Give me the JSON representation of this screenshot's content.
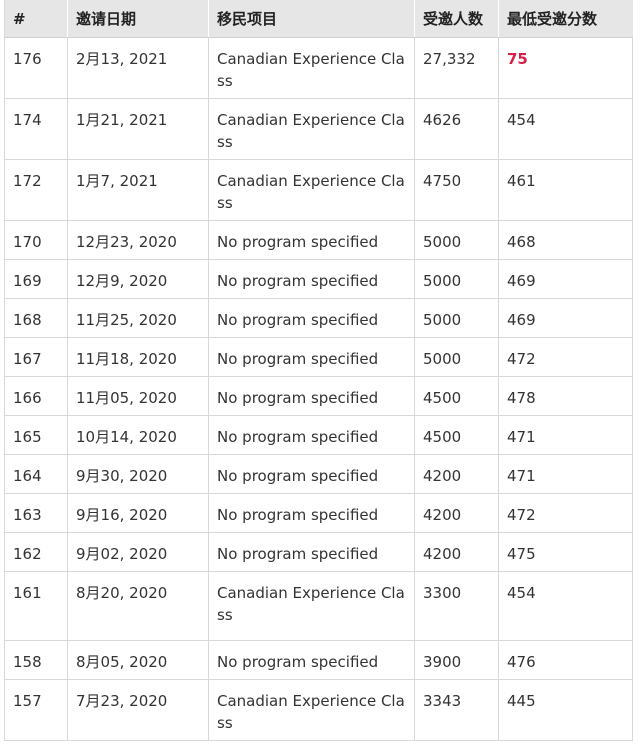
{
  "columns": [
    "#",
    "邀请日期",
    "移民项目",
    "受邀人数",
    "最低受邀分数"
  ],
  "rows": [
    {
      "num": "176",
      "date": "2月13, 2021",
      "program": "Canadian Experience Class",
      "invited": "27,332",
      "score": "75",
      "highlight": true
    },
    {
      "num": "174",
      "date": "1月21, 2021",
      "program": "Canadian Experience Class",
      "invited": "4626",
      "score": "454"
    },
    {
      "num": "172",
      "date": "1月7, 2021",
      "program": "Canadian Experience Class",
      "invited": "4750",
      "score": "461"
    },
    {
      "num": "170",
      "date": "12月23, 2020",
      "program": "No program specified",
      "invited": "5000",
      "score": "468"
    },
    {
      "num": "169",
      "date": "12月9, 2020",
      "program": "No program specified",
      "invited": "5000",
      "score": "469"
    },
    {
      "num": "168",
      "date": "11月25, 2020",
      "program": "No program specified",
      "invited": "5000",
      "score": "469"
    },
    {
      "num": "167",
      "date": "11月18, 2020",
      "program": "No program specified",
      "invited": "5000",
      "score": "472"
    },
    {
      "num": "166",
      "date": "11月05, 2020",
      "program": "No program specified",
      "invited": "4500",
      "score": "478"
    },
    {
      "num": "165",
      "date": "10月14, 2020",
      "program": "No program specified",
      "invited": "4500",
      "score": "471"
    },
    {
      "num": "164",
      "date": "9月30, 2020",
      "program": "No program specified",
      "invited": "4200",
      "score": "471"
    },
    {
      "num": "163",
      "date": "9月16, 2020",
      "program": "No program specified",
      "invited": "4200",
      "score": "472"
    },
    {
      "num": "162",
      "date": "9月02, 2020",
      "program": "No program specified",
      "invited": "4200",
      "score": "475"
    },
    {
      "num": "161",
      "date": "8月20, 2020",
      "program": "Canadian Experience Class",
      "invited": "3300",
      "score": "454"
    },
    {
      "num": "158",
      "date": "8月05, 2020",
      "program": "No program specified",
      "invited": "3900",
      "score": "476"
    },
    {
      "num": "157",
      "date": "7月23, 2020",
      "program": "Canadian Experience Class",
      "invited": "3343",
      "score": "445"
    }
  ]
}
